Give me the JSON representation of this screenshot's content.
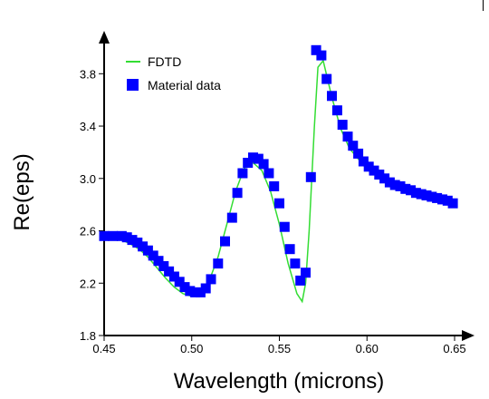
{
  "chart_data": {
    "type": "line",
    "xlabel": "Wavelength  (microns)",
    "ylabel": "Re(eps)",
    "xlim": [
      0.45,
      0.65
    ],
    "ylim": [
      1.8,
      4.1
    ],
    "xticks": [
      0.45,
      0.5,
      0.55,
      0.6,
      0.65
    ],
    "xtick_labels": [
      "0.45",
      "0.50",
      "0.55",
      "0.60",
      "0.65"
    ],
    "yticks": [
      1.8,
      2.2,
      2.6,
      3.0,
      3.4,
      3.8
    ],
    "ytick_labels": [
      "1.8",
      "2.2",
      "2.6",
      "3.0",
      "3.4",
      "3.8"
    ],
    "grid": false,
    "legend_position": "top-left",
    "series": [
      {
        "name": "FDTD",
        "style": "line",
        "color": "#33dd33",
        "x": [
          0.45,
          0.455,
          0.46,
          0.465,
          0.47,
          0.475,
          0.48,
          0.485,
          0.49,
          0.495,
          0.5,
          0.505,
          0.51,
          0.515,
          0.52,
          0.525,
          0.53,
          0.535,
          0.54,
          0.545,
          0.55,
          0.555,
          0.56,
          0.563,
          0.565,
          0.567,
          0.57,
          0.572,
          0.575,
          0.58,
          0.585,
          0.59,
          0.6,
          0.61,
          0.62,
          0.63,
          0.64,
          0.65
        ],
        "y": [
          2.54,
          2.54,
          2.53,
          2.5,
          2.46,
          2.4,
          2.32,
          2.24,
          2.17,
          2.12,
          2.1,
          2.13,
          2.22,
          2.4,
          2.65,
          2.9,
          3.08,
          3.12,
          3.06,
          2.9,
          2.65,
          2.35,
          2.12,
          2.06,
          2.2,
          2.6,
          3.4,
          3.85,
          3.9,
          3.62,
          3.38,
          3.23,
          3.07,
          2.98,
          2.92,
          2.88,
          2.84,
          2.8
        ]
      },
      {
        "name": "Material data",
        "style": "marker",
        "color": "#0000ff",
        "x": [
          0.45,
          0.455,
          0.46,
          0.463,
          0.466,
          0.469,
          0.472,
          0.475,
          0.478,
          0.481,
          0.484,
          0.487,
          0.49,
          0.493,
          0.496,
          0.499,
          0.502,
          0.505,
          0.508,
          0.511,
          0.515,
          0.519,
          0.523,
          0.526,
          0.529,
          0.532,
          0.535,
          0.538,
          0.541,
          0.544,
          0.547,
          0.55,
          0.553,
          0.556,
          0.559,
          0.562,
          0.565,
          0.568,
          0.571,
          0.574,
          0.577,
          0.58,
          0.583,
          0.586,
          0.589,
          0.592,
          0.595,
          0.598,
          0.601,
          0.604,
          0.607,
          0.61,
          0.613,
          0.616,
          0.619,
          0.622,
          0.625,
          0.628,
          0.631,
          0.634,
          0.637,
          0.64,
          0.643,
          0.646,
          0.649
        ],
        "y": [
          2.56,
          2.56,
          2.56,
          2.55,
          2.53,
          2.51,
          2.48,
          2.45,
          2.41,
          2.37,
          2.33,
          2.29,
          2.25,
          2.21,
          2.17,
          2.14,
          2.13,
          2.13,
          2.16,
          2.23,
          2.35,
          2.52,
          2.7,
          2.89,
          3.04,
          3.12,
          3.16,
          3.15,
          3.11,
          3.04,
          2.94,
          2.81,
          2.63,
          2.46,
          2.35,
          2.22,
          2.28,
          3.01,
          3.98,
          3.94,
          3.76,
          3.63,
          3.52,
          3.41,
          3.32,
          3.25,
          3.19,
          3.13,
          3.09,
          3.06,
          3.03,
          3.0,
          2.97,
          2.95,
          2.94,
          2.92,
          2.91,
          2.89,
          2.88,
          2.87,
          2.86,
          2.85,
          2.84,
          2.83,
          2.81
        ]
      }
    ]
  }
}
